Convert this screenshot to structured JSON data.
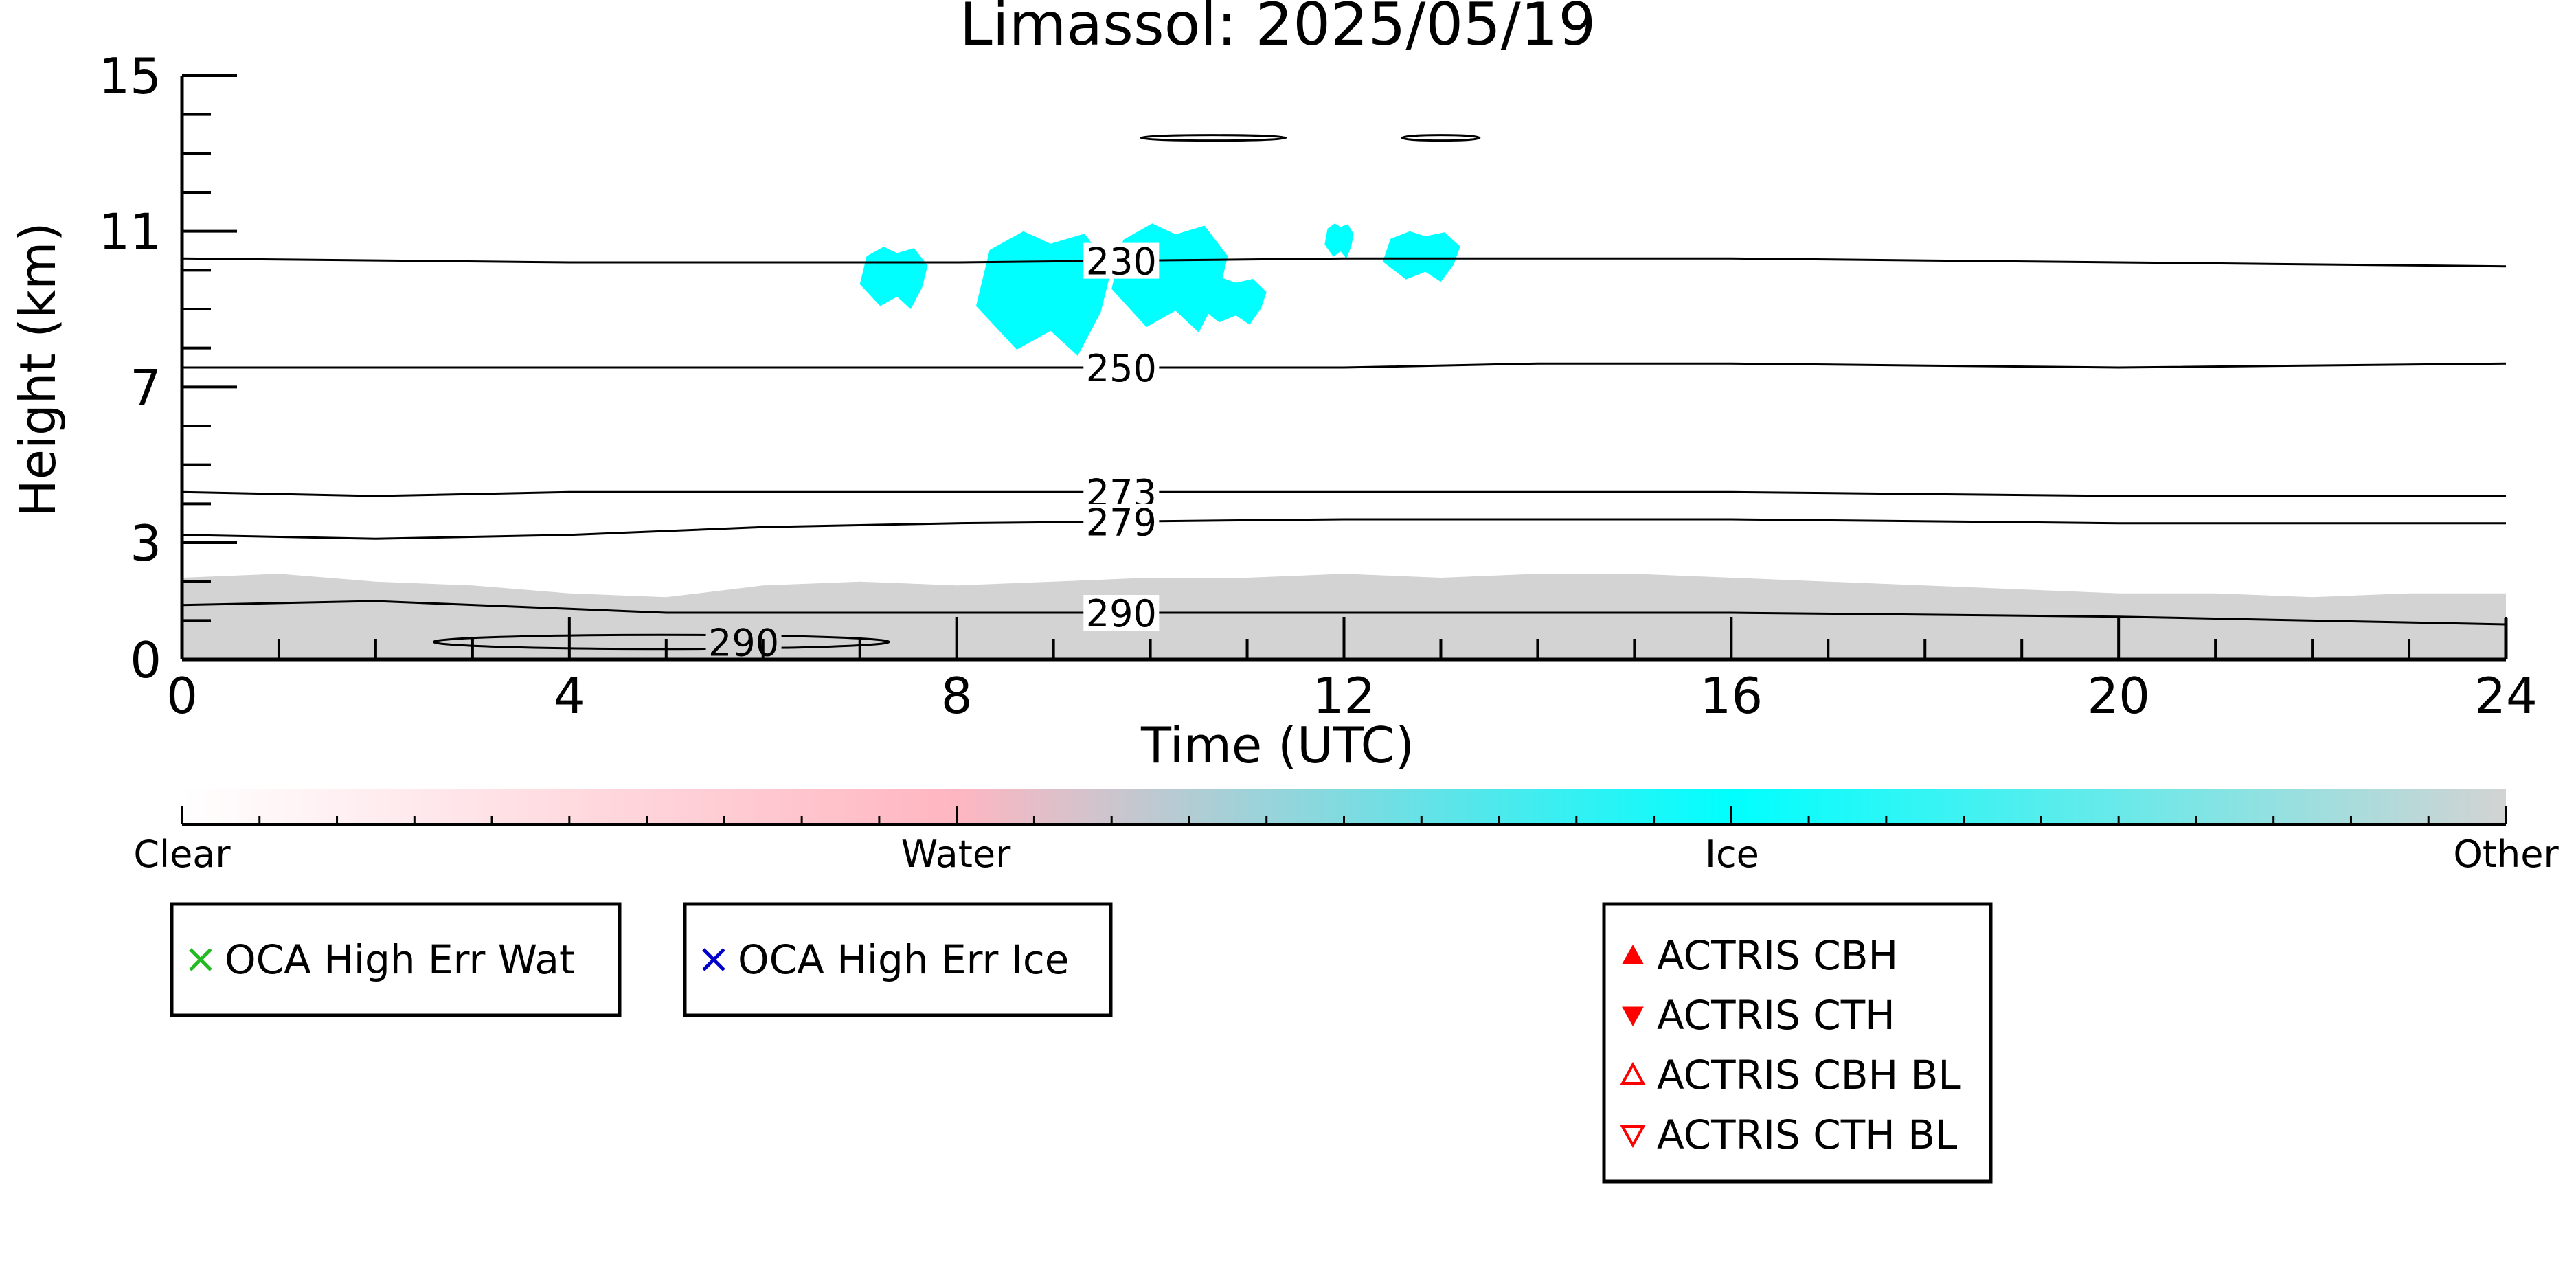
{
  "chart_data": {
    "type": "heatmap",
    "title": "Limassol: 2025/05/19",
    "xlabel": "Time (UTC)",
    "ylabel": "Height (km)",
    "xlim": [
      0,
      24
    ],
    "ylim": [
      0,
      15
    ],
    "x_ticks": [
      "0",
      "4",
      "8",
      "12",
      "16",
      "20",
      "24"
    ],
    "x_tick_values": [
      0,
      4,
      8,
      12,
      16,
      20,
      24
    ],
    "y_ticks": [
      "0",
      "3",
      "7",
      "11",
      "15"
    ],
    "y_tick_values": [
      0,
      3,
      7,
      11,
      15
    ],
    "grid": false,
    "colors": {
      "clear": "#ffffff",
      "water": "#ffb6c1",
      "ice": "#00ffff",
      "other": "#d3d3d3"
    },
    "classification": {
      "other_boundary_layer": [
        [
          0,
          2.1
        ],
        [
          1,
          2.2
        ],
        [
          2,
          2.0
        ],
        [
          3,
          1.9
        ],
        [
          4,
          1.7
        ],
        [
          5,
          1.6
        ],
        [
          6,
          1.9
        ],
        [
          7,
          2.0
        ],
        [
          8,
          1.9
        ],
        [
          9,
          2.0
        ],
        [
          10,
          2.1
        ],
        [
          11,
          2.1
        ],
        [
          12,
          2.2
        ],
        [
          13,
          2.1
        ],
        [
          14,
          2.2
        ],
        [
          15,
          2.2
        ],
        [
          16,
          2.1
        ],
        [
          17,
          2.0
        ],
        [
          18,
          1.9
        ],
        [
          19,
          1.8
        ],
        [
          20,
          1.7
        ],
        [
          21,
          1.7
        ],
        [
          22,
          1.6
        ],
        [
          23,
          1.7
        ],
        [
          24,
          1.7
        ]
      ],
      "ice_clouds": [
        {
          "t0": 7.0,
          "t1": 7.7,
          "h0": 9.0,
          "h1": 10.6
        },
        {
          "t0": 8.2,
          "t1": 9.6,
          "h0": 7.8,
          "h1": 11.0
        },
        {
          "t0": 9.6,
          "t1": 10.8,
          "h0": 8.4,
          "h1": 11.2
        },
        {
          "t0": 10.5,
          "t1": 11.2,
          "h0": 8.6,
          "h1": 9.8
        },
        {
          "t0": 11.8,
          "t1": 12.1,
          "h0": 10.3,
          "h1": 11.2
        },
        {
          "t0": 12.4,
          "t1": 13.2,
          "h0": 9.7,
          "h1": 11.0
        }
      ]
    },
    "temperature_contours": [
      {
        "label": "230",
        "label_at": 9.7,
        "points": [
          [
            0,
            10.3
          ],
          [
            4,
            10.2
          ],
          [
            8,
            10.2
          ],
          [
            12,
            10.3
          ],
          [
            14,
            10.3
          ],
          [
            16,
            10.3
          ],
          [
            20,
            10.2
          ],
          [
            24,
            10.1
          ]
        ]
      },
      {
        "label": "250",
        "label_at": 9.7,
        "points": [
          [
            0,
            7.5
          ],
          [
            4,
            7.5
          ],
          [
            8,
            7.5
          ],
          [
            12,
            7.5
          ],
          [
            14,
            7.6
          ],
          [
            16,
            7.6
          ],
          [
            20,
            7.5
          ],
          [
            24,
            7.6
          ]
        ]
      },
      {
        "label": "273",
        "label_at": 9.7,
        "points": [
          [
            0,
            4.3
          ],
          [
            2,
            4.2
          ],
          [
            4,
            4.3
          ],
          [
            8,
            4.3
          ],
          [
            12,
            4.3
          ],
          [
            16,
            4.3
          ],
          [
            20,
            4.2
          ],
          [
            24,
            4.2
          ]
        ]
      },
      {
        "label": "279",
        "label_at": 9.7,
        "points": [
          [
            0,
            3.2
          ],
          [
            2,
            3.1
          ],
          [
            4,
            3.2
          ],
          [
            6,
            3.4
          ],
          [
            8,
            3.5
          ],
          [
            12,
            3.6
          ],
          [
            16,
            3.6
          ],
          [
            20,
            3.5
          ],
          [
            24,
            3.5
          ]
        ]
      },
      {
        "label": "290",
        "label_at": 9.7,
        "points": [
          [
            0,
            1.4
          ],
          [
            2,
            1.5
          ],
          [
            4,
            1.3
          ],
          [
            5,
            1.2
          ],
          [
            8,
            1.2
          ],
          [
            12,
            1.2
          ],
          [
            16,
            1.2
          ],
          [
            20,
            1.1
          ],
          [
            24,
            0.9
          ]
        ]
      }
    ],
    "closed_contours": [
      {
        "label": "290",
        "label_at": 5.8,
        "t0": 2.6,
        "t1": 7.3,
        "h_center": 0.45,
        "h_half": 0.18
      },
      {
        "label": "",
        "t0": 9.9,
        "t1": 11.4,
        "h_center": 13.4,
        "h_half": 0.05
      },
      {
        "label": "",
        "t0": 12.6,
        "t1": 13.4,
        "h_center": 13.4,
        "h_half": 0.04
      }
    ],
    "colorbar": {
      "labels": [
        "Clear",
        "Water",
        "Ice",
        "Other"
      ],
      "label_positions": [
        0,
        0.333,
        0.667,
        1
      ]
    },
    "legends": [
      {
        "entries": [
          {
            "marker": "x",
            "color": "#22bb22",
            "label": "OCA High Err Wat"
          }
        ]
      },
      {
        "entries": [
          {
            "marker": "x",
            "color": "#0000cc",
            "label": "OCA High Err Ice"
          }
        ]
      },
      {
        "entries": [
          {
            "marker": "triangle-up-filled",
            "color": "#ff0000",
            "label": "ACTRIS CBH"
          },
          {
            "marker": "triangle-down-filled",
            "color": "#ff0000",
            "label": "ACTRIS CTH"
          },
          {
            "marker": "triangle-up-open",
            "color": "#ff0000",
            "label": "ACTRIS CBH BL"
          },
          {
            "marker": "triangle-down-open",
            "color": "#ff0000",
            "label": "ACTRIS CTH BL"
          }
        ]
      }
    ]
  }
}
